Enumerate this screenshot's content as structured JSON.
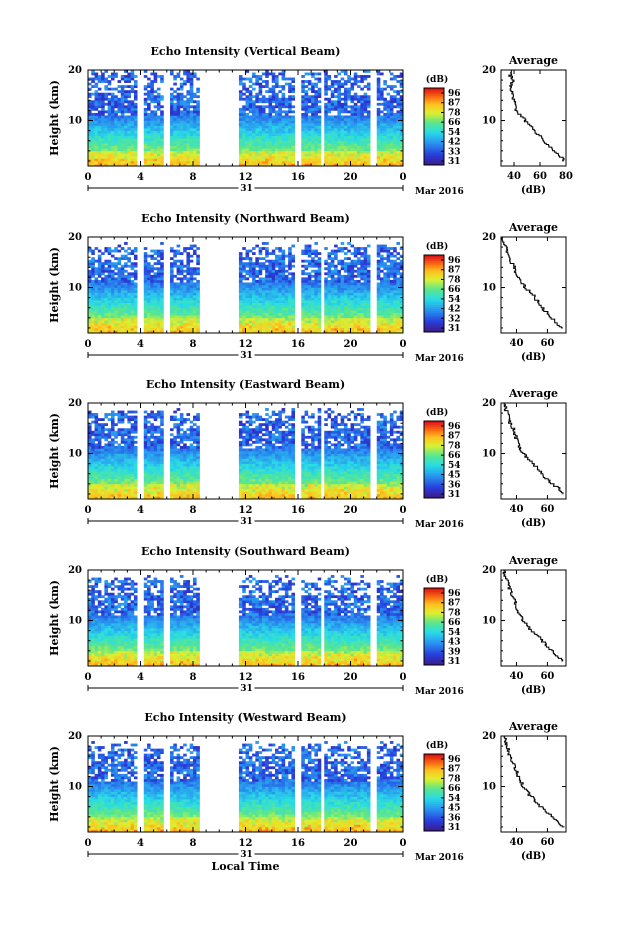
{
  "chart_data": [
    {
      "type": "heatmap",
      "title": "Echo Intensity (Vertical Beam)",
      "ylabel": "Height (km)",
      "yticks": [
        "10",
        "20"
      ],
      "ylim": [
        1,
        20
      ],
      "xticks": [
        "0",
        "4",
        "8",
        "12",
        "16",
        "20",
        "0"
      ],
      "xlim": [
        0,
        24
      ],
      "date_label": "31",
      "month_label": "Mar 2016",
      "colorbar": {
        "unit": "(dB)",
        "ticks": [
          "96",
          "87",
          "78",
          "66",
          "54",
          "42",
          "33",
          "31"
        ]
      },
      "data_gaps_hours": [
        [
          3.7,
          4.2
        ],
        [
          5.8,
          6.2
        ],
        [
          8.4,
          11.6
        ],
        [
          15.8,
          16.3
        ],
        [
          17.7,
          18.0
        ],
        [
          21.6,
          22.0
        ]
      ],
      "profile": {
        "title": "Average",
        "xlabel": "(dB)",
        "xticks": [
          "40",
          "60",
          "80"
        ],
        "xlim": [
          30,
          80
        ],
        "yticks": [
          "10",
          "20"
        ],
        "height_km": [
          2,
          3,
          4,
          5,
          6,
          7,
          8,
          9,
          10,
          11,
          12,
          13,
          14,
          15,
          16,
          17,
          18,
          19,
          20
        ],
        "value_db": [
          79,
          76,
          71,
          68,
          62,
          60,
          56,
          54,
          49,
          46,
          42,
          41,
          40,
          39,
          38,
          37,
          40,
          37,
          38
        ]
      }
    },
    {
      "type": "heatmap",
      "title": "Echo Intensity (Northward Beam)",
      "ylabel": "Height (km)",
      "yticks": [
        "10",
        "20"
      ],
      "ylim": [
        1,
        20
      ],
      "xticks": [
        "0",
        "4",
        "8",
        "12",
        "16",
        "20",
        "0"
      ],
      "xlim": [
        0,
        24
      ],
      "date_label": "31",
      "month_label": "Mar 2016",
      "colorbar": {
        "unit": "(dB)",
        "ticks": [
          "96",
          "87",
          "78",
          "66",
          "54",
          "42",
          "32",
          "31"
        ]
      },
      "data_gaps_hours": [
        [
          3.7,
          4.2
        ],
        [
          5.8,
          6.2
        ],
        [
          8.4,
          11.6
        ],
        [
          15.8,
          16.3
        ],
        [
          17.7,
          18.0
        ],
        [
          21.6,
          22.0
        ]
      ],
      "profile": {
        "title": "Average",
        "xlabel": "(dB)",
        "xticks": [
          "40",
          "60"
        ],
        "xlim": [
          30,
          72
        ],
        "yticks": [
          "10",
          "20"
        ],
        "height_km": [
          2,
          3,
          4,
          5,
          6,
          7,
          8,
          9,
          10,
          11,
          12,
          13,
          14,
          15,
          16,
          17,
          18,
          19,
          20
        ],
        "value_db": [
          70,
          66,
          63,
          60,
          57,
          55,
          52,
          50,
          46,
          44,
          42,
          40,
          39,
          37,
          36,
          34,
          33,
          32,
          31
        ]
      }
    },
    {
      "type": "heatmap",
      "title": "Echo Intensity (Eastward Beam)",
      "ylabel": "Height (km)",
      "yticks": [
        "10",
        "20"
      ],
      "ylim": [
        1,
        20
      ],
      "xticks": [
        "0",
        "4",
        "8",
        "12",
        "16",
        "20",
        "0"
      ],
      "xlim": [
        0,
        24
      ],
      "date_label": "31",
      "month_label": "Mar 2016",
      "colorbar": {
        "unit": "(dB)",
        "ticks": [
          "96",
          "87",
          "78",
          "66",
          "54",
          "45",
          "36",
          "31"
        ]
      },
      "data_gaps_hours": [
        [
          3.7,
          4.2
        ],
        [
          5.8,
          6.2
        ],
        [
          8.4,
          11.6
        ],
        [
          15.8,
          16.3
        ],
        [
          17.7,
          18.0
        ],
        [
          21.6,
          22.0
        ]
      ],
      "profile": {
        "title": "Average",
        "xlabel": "(dB)",
        "xticks": [
          "40",
          "60"
        ],
        "xlim": [
          30,
          72
        ],
        "yticks": [
          "10",
          "20"
        ],
        "height_km": [
          2,
          3,
          4,
          5,
          6,
          7,
          8,
          9,
          10,
          11,
          12,
          13,
          14,
          15,
          16,
          17,
          18,
          19,
          20
        ],
        "value_db": [
          70,
          68,
          64,
          60,
          57,
          54,
          51,
          48,
          45,
          43,
          41,
          40,
          39,
          38,
          36,
          35,
          34,
          33,
          32
        ]
      }
    },
    {
      "type": "heatmap",
      "title": "Echo Intensity (Southward Beam)",
      "ylabel": "Height (km)",
      "yticks": [
        "10",
        "20"
      ],
      "ylim": [
        1,
        20
      ],
      "xticks": [
        "0",
        "4",
        "8",
        "12",
        "16",
        "20",
        "0"
      ],
      "xlim": [
        0,
        24
      ],
      "date_label": "31",
      "month_label": "Mar 2016",
      "colorbar": {
        "unit": "(dB)",
        "ticks": [
          "96",
          "87",
          "78",
          "66",
          "54",
          "43",
          "39",
          "31"
        ]
      },
      "data_gaps_hours": [
        [
          3.7,
          4.2
        ],
        [
          5.8,
          6.2
        ],
        [
          8.4,
          11.6
        ],
        [
          15.8,
          16.3
        ],
        [
          17.7,
          18.0
        ],
        [
          21.6,
          22.0
        ]
      ],
      "profile": {
        "title": "Average",
        "xlabel": "(dB)",
        "xticks": [
          "40",
          "60"
        ],
        "xlim": [
          30,
          72
        ],
        "yticks": [
          "10",
          "20"
        ],
        "height_km": [
          2,
          3,
          4,
          5,
          6,
          7,
          8,
          9,
          10,
          11,
          12,
          13,
          14,
          15,
          16,
          17,
          18,
          19,
          20
        ],
        "value_db": [
          70,
          67,
          64,
          60,
          57,
          54,
          50,
          47,
          45,
          43,
          41,
          40,
          39,
          37,
          36,
          35,
          34,
          33,
          32
        ]
      }
    },
    {
      "type": "heatmap",
      "title": "Echo Intensity (Westward Beam)",
      "ylabel": "Height (km)",
      "yticks": [
        "10",
        "20"
      ],
      "ylim": [
        1,
        20
      ],
      "xticks": [
        "0",
        "4",
        "8",
        "12",
        "16",
        "20",
        "0"
      ],
      "xlim": [
        0,
        24
      ],
      "date_label": "31",
      "month_label": "Mar 2016",
      "xlabel": "Local Time",
      "colorbar": {
        "unit": "(dB)",
        "ticks": [
          "96",
          "87",
          "78",
          "66",
          "54",
          "45",
          "36",
          "31"
        ]
      },
      "data_gaps_hours": [
        [
          3.7,
          4.2
        ],
        [
          5.8,
          6.2
        ],
        [
          8.4,
          11.6
        ],
        [
          15.8,
          16.3
        ],
        [
          17.7,
          18.0
        ],
        [
          21.6,
          22.0
        ]
      ],
      "profile": {
        "title": "Average",
        "xlabel": "(dB)",
        "xticks": [
          "40",
          "60"
        ],
        "xlim": [
          30,
          72
        ],
        "yticks": [
          "10",
          "20"
        ],
        "height_km": [
          2,
          3,
          4,
          5,
          6,
          7,
          8,
          9,
          10,
          11,
          12,
          13,
          14,
          15,
          16,
          17,
          18,
          19,
          20
        ],
        "value_db": [
          70,
          67,
          63,
          60,
          56,
          53,
          50,
          47,
          45,
          43,
          41,
          40,
          39,
          37,
          36,
          35,
          34,
          33,
          32
        ]
      }
    }
  ]
}
